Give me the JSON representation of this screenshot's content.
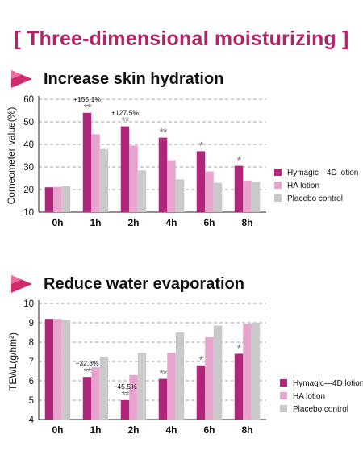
{
  "title": "[ Three-dimensional moisturizing ]",
  "colors": {
    "series1": "#b0267a",
    "series2": "#e7a5cd",
    "series3": "#c9c9c9",
    "title": "#b2246a",
    "arrow": "#d12a6f"
  },
  "icons": {
    "section_arrow": "play-triangle-icon"
  },
  "sections": [
    {
      "heading": "Increase skin hydration"
    },
    {
      "heading": "Reduce water evaporation"
    }
  ],
  "chart_data": [
    {
      "type": "bar",
      "title": "",
      "ylabel": "Corneometer value(%)",
      "xlabel": "",
      "categories": [
        "0h",
        "1h",
        "2h",
        "4h",
        "6h",
        "8h"
      ],
      "ylim": [
        10,
        60
      ],
      "yticks": [
        10,
        20,
        30,
        40,
        50,
        60
      ],
      "grid": true,
      "legend_position": "right",
      "series": [
        {
          "name": "Hymagic—4D lotion",
          "values": [
            21,
            54,
            48,
            43,
            37,
            30.5
          ]
        },
        {
          "name": "HA lotion",
          "values": [
            21.2,
            44.5,
            39.5,
            33,
            28,
            24
          ]
        },
        {
          "name": "Placebo control",
          "values": [
            21.5,
            38,
            28.5,
            24.5,
            23,
            23.5
          ]
        }
      ],
      "annotations": [
        {
          "category": "1h",
          "series": 0,
          "stars": "**",
          "label": "+155.1%"
        },
        {
          "category": "2h",
          "series": 0,
          "stars": "**",
          "label": "+127.5%"
        },
        {
          "category": "4h",
          "series": 0,
          "stars": "**",
          "label": ""
        },
        {
          "category": "6h",
          "series": 0,
          "stars": "*",
          "label": ""
        },
        {
          "category": "8h",
          "series": 0,
          "stars": "*",
          "label": ""
        }
      ]
    },
    {
      "type": "bar",
      "title": "",
      "ylabel": "TEWL(g/hm²)",
      "xlabel": "",
      "categories": [
        "0h",
        "1h",
        "2h",
        "4h",
        "6h",
        "8h"
      ],
      "ylim": [
        4,
        10
      ],
      "yticks": [
        4,
        5,
        6,
        7,
        8,
        9,
        10
      ],
      "grid": true,
      "legend_position": "right",
      "series": [
        {
          "name": "Hymagic—4D lotion",
          "values": [
            9.2,
            6.2,
            5.0,
            6.1,
            6.8,
            7.4
          ]
        },
        {
          "name": "HA lotion",
          "values": [
            9.2,
            6.7,
            6.3,
            7.45,
            8.25,
            8.95
          ]
        },
        {
          "name": "Placebo control",
          "values": [
            9.15,
            7.25,
            7.45,
            8.5,
            8.85,
            9.0
          ]
        }
      ],
      "annotations": [
        {
          "category": "1h",
          "series": 0,
          "stars": "**",
          "label": "−32.3%"
        },
        {
          "category": "2h",
          "series": 0,
          "stars": "**",
          "label": "−45.5%"
        },
        {
          "category": "4h",
          "series": 0,
          "stars": "**",
          "label": ""
        },
        {
          "category": "6h",
          "series": 0,
          "stars": "*",
          "label": ""
        },
        {
          "category": "8h",
          "series": 0,
          "stars": "*",
          "label": ""
        }
      ]
    }
  ]
}
